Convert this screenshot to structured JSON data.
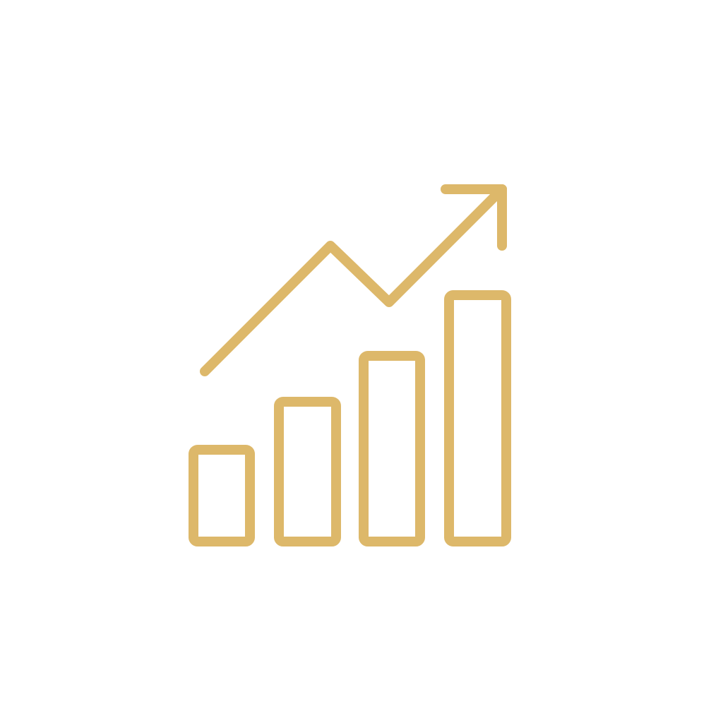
{
  "icon": {
    "name": "growth-chart-icon",
    "stroke_color": "#DDB86A",
    "background_color": "#FFFFFF",
    "bar_levels": [
      1,
      2,
      3,
      4
    ],
    "trend": "up"
  }
}
